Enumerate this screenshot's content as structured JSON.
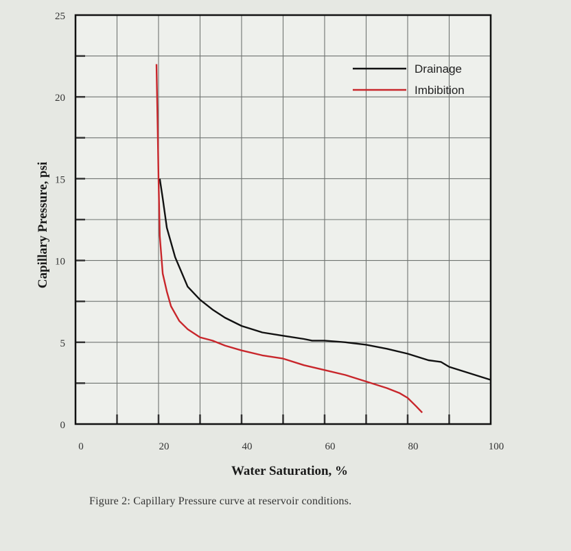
{
  "caption": "Figure 2: Capillary Pressure curve at reservoir conditions.",
  "chart_data": {
    "type": "line",
    "title": "",
    "xlabel": "Water Saturation, %",
    "ylabel": "Capillary Pressure, psi",
    "xlim": [
      0,
      100
    ],
    "ylim": [
      0,
      25
    ],
    "xticks": [
      0,
      20,
      40,
      60,
      80,
      100
    ],
    "yticks": [
      0,
      5,
      10,
      15,
      20,
      25
    ],
    "grid": true,
    "grid_x_step": 10,
    "grid_y_step": 2.5,
    "legend_position": "upper right",
    "series": [
      {
        "name": "Drainage",
        "color": "#111111",
        "x": [
          20.3,
          21,
          22,
          24,
          27,
          30,
          33,
          36,
          40,
          45,
          50,
          55,
          57,
          60,
          65,
          70,
          75,
          80,
          85,
          88,
          90,
          95,
          100
        ],
        "y": [
          15.0,
          13.8,
          12.0,
          10.2,
          8.4,
          7.6,
          7.0,
          6.5,
          6.0,
          5.6,
          5.4,
          5.2,
          5.1,
          5.1,
          5.0,
          4.85,
          4.6,
          4.3,
          3.9,
          3.8,
          3.5,
          3.1,
          2.7
        ]
      },
      {
        "name": "Imbibition",
        "color": "#c8262b",
        "x": [
          19.5,
          19.8,
          20.0,
          20.3,
          21,
          22,
          23,
          25,
          27,
          30,
          33,
          36,
          40,
          45,
          50,
          55,
          60,
          65,
          70,
          75,
          78,
          80,
          82,
          83.5
        ],
        "y": [
          22.0,
          18.0,
          15.0,
          11.5,
          9.2,
          8.1,
          7.2,
          6.3,
          5.8,
          5.3,
          5.1,
          4.8,
          4.5,
          4.2,
          4.0,
          3.6,
          3.3,
          3.0,
          2.6,
          2.2,
          1.9,
          1.6,
          1.1,
          0.7
        ]
      }
    ]
  }
}
